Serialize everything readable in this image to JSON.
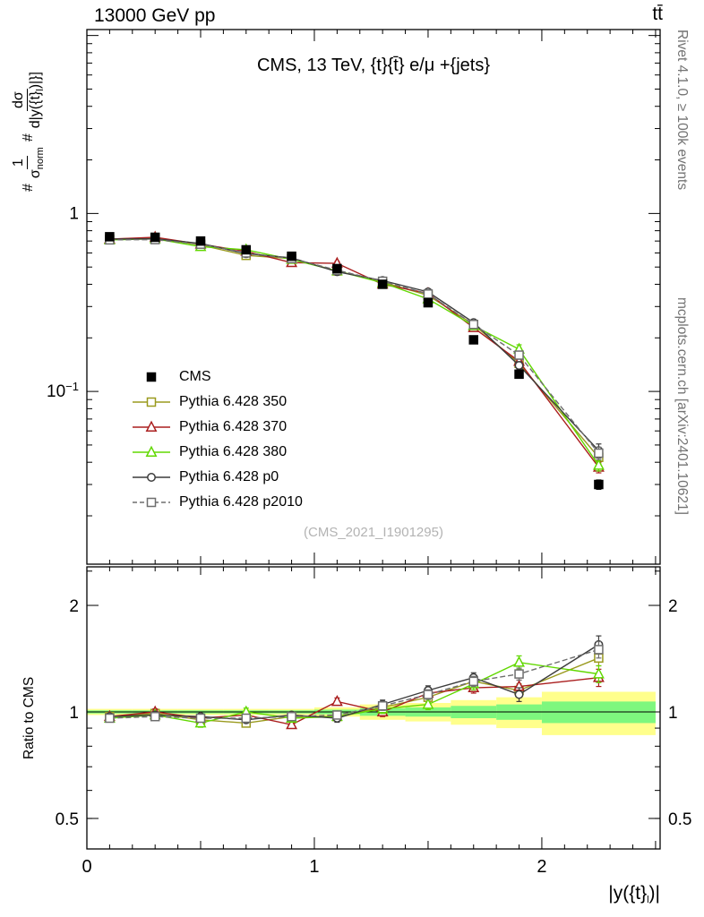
{
  "header": {
    "left": "13000 GeV pp",
    "right": "tt̄"
  },
  "captions": {
    "rivet": "Rivet 4.1.0, ≥ 100k events",
    "mcplots": "mcplots.cern.ch [arXiv:2401.10621]",
    "watermark": "(CMS_2021_I1901295)"
  },
  "axis_labels": {
    "ratio": "Ratio to CMS",
    "x_pre": "|y({t}",
    "x_sub": "l",
    "x_post": ")|",
    "y_prefix1": "#",
    "y_num1": "1",
    "y_den1_base": "σ",
    "y_den1_sub": "norm",
    "y_prefix2": "#",
    "y_num2": "dσ",
    "y_den2_pre": "d|y({t}",
    "y_den2_sub": "l",
    "y_den2_post": ")|}]"
  },
  "chart_data": {
    "type": "line",
    "title": "CMS, 13 TeV, {t}{t̄} e/μ +{jets}",
    "x_label": "|y({t}_l)|",
    "y_label": "1/σ_norm dσ/d|y({t}_l)|",
    "ratio_panel_label": "Ratio to CMS",
    "y_scale": "log",
    "x_range": [
      0,
      2.52
    ],
    "y_range_main": [
      0.0107,
      10.8
    ],
    "y_range_ratio": [
      0.41,
      2.57
    ],
    "x_major_ticks": [
      0,
      1,
      2
    ],
    "y_main_labeled_ticks": [
      1,
      0.1
    ],
    "y_ratio_labeled_ticks": [
      2,
      1,
      0.5
    ],
    "bin_edges": [
      0,
      0.2,
      0.4,
      0.6,
      0.8,
      1.0,
      1.2,
      1.4,
      1.6,
      1.8,
      2.0,
      2.5
    ],
    "x": [
      0.1,
      0.3,
      0.5,
      0.7,
      0.9,
      1.1,
      1.3,
      1.5,
      1.7,
      1.9,
      2.25
    ],
    "cms": {
      "label": "CMS",
      "color": "#000000",
      "marker": "square",
      "filled": true,
      "values": [
        0.74,
        0.735,
        0.7,
        0.625,
        0.575,
        0.49,
        0.4,
        0.315,
        0.195,
        0.125,
        0.03
      ],
      "yerr_rel": [
        0.015,
        0.015,
        0.015,
        0.02,
        0.02,
        0.02,
        0.025,
        0.025,
        0.03,
        0.04,
        0.06
      ]
    },
    "series": [
      {
        "key": "py350",
        "label": "Pythia 6.428 350",
        "color": "#9a9a1e",
        "marker": "square",
        "filled": false,
        "line": "solid",
        "values": [
          0.7178,
          0.7277,
          0.665,
          0.5813,
          0.5578,
          0.4753,
          0.412,
          0.3465,
          0.2379,
          0.1438,
          0.0426
        ],
        "ratio": [
          0.97,
          0.99,
          0.95,
          0.93,
          0.97,
          0.97,
          1.03,
          1.1,
          1.22,
          1.15,
          1.42
        ],
        "ratio_err": [
          0.02,
          0.02,
          0.02,
          0.02,
          0.02,
          0.025,
          0.03,
          0.035,
          0.04,
          0.05,
          0.07
        ]
      },
      {
        "key": "py370",
        "label": "Pythia 6.428 370",
        "color": "#aa1e1e",
        "marker": "triangle",
        "filled": false,
        "line": "solid",
        "values": [
          0.7178,
          0.735,
          0.672,
          0.6125,
          0.529,
          0.5243,
          0.4,
          0.356,
          0.2282,
          0.1475,
          0.0375
        ],
        "ratio": [
          0.97,
          1.0,
          0.96,
          0.98,
          0.92,
          1.07,
          1.0,
          1.13,
          1.17,
          1.18,
          1.25
        ],
        "ratio_err": [
          0.02,
          0.02,
          0.02,
          0.02,
          0.02,
          0.025,
          0.03,
          0.035,
          0.04,
          0.05,
          0.07
        ]
      },
      {
        "key": "py380",
        "label": "Pythia 6.428 380",
        "color": "#61d800",
        "marker": "triangle",
        "filled": false,
        "line": "solid",
        "values": [
          0.7104,
          0.7203,
          0.651,
          0.625,
          0.552,
          0.4753,
          0.408,
          0.3308,
          0.234,
          0.1725,
          0.0384
        ],
        "ratio": [
          0.96,
          0.98,
          0.93,
          1.0,
          0.96,
          0.97,
          1.02,
          1.05,
          1.2,
          1.38,
          1.28
        ],
        "ratio_err": [
          0.02,
          0.02,
          0.025,
          0.025,
          0.025,
          0.025,
          0.03,
          0.035,
          0.045,
          0.06,
          0.07
        ]
      },
      {
        "key": "pyp0",
        "label": "Pythia 6.428 p0",
        "color": "#3c3c3c",
        "marker": "circle",
        "filled": false,
        "line": "solid",
        "values": [
          0.7178,
          0.7203,
          0.679,
          0.5938,
          0.5635,
          0.4704,
          0.42,
          0.3623,
          0.2438,
          0.14,
          0.0465
        ],
        "ratio": [
          0.97,
          0.98,
          0.97,
          0.95,
          0.98,
          0.96,
          1.05,
          1.15,
          1.25,
          1.12,
          1.55
        ],
        "ratio_err": [
          0.02,
          0.02,
          0.02,
          0.02,
          0.02,
          0.025,
          0.03,
          0.035,
          0.04,
          0.05,
          0.09
        ]
      },
      {
        "key": "pyp2010",
        "label": "Pythia 6.428 p2010",
        "color": "#6e6e6e",
        "marker": "square",
        "filled": false,
        "line": "dashed",
        "values": [
          0.7104,
          0.713,
          0.672,
          0.6,
          0.5578,
          0.4802,
          0.416,
          0.3528,
          0.2379,
          0.16,
          0.045
        ],
        "ratio": [
          0.96,
          0.97,
          0.96,
          0.96,
          0.97,
          0.98,
          1.04,
          1.12,
          1.22,
          1.28,
          1.5
        ],
        "ratio_err": [
          0.02,
          0.02,
          0.02,
          0.02,
          0.02,
          0.025,
          0.03,
          0.035,
          0.04,
          0.05,
          0.08
        ]
      }
    ],
    "bands": {
      "yellow": {
        "color": "#ffff8c",
        "half_widths": [
          0.02,
          0.02,
          0.02,
          0.02,
          0.02,
          0.03,
          0.05,
          0.06,
          0.08,
          0.1,
          0.14
        ]
      },
      "green": {
        "color": "#7ef77e",
        "half_widths": [
          0.01,
          0.01,
          0.01,
          0.01,
          0.01,
          0.015,
          0.025,
          0.03,
          0.04,
          0.05,
          0.07
        ]
      }
    },
    "reference_line": 1
  }
}
